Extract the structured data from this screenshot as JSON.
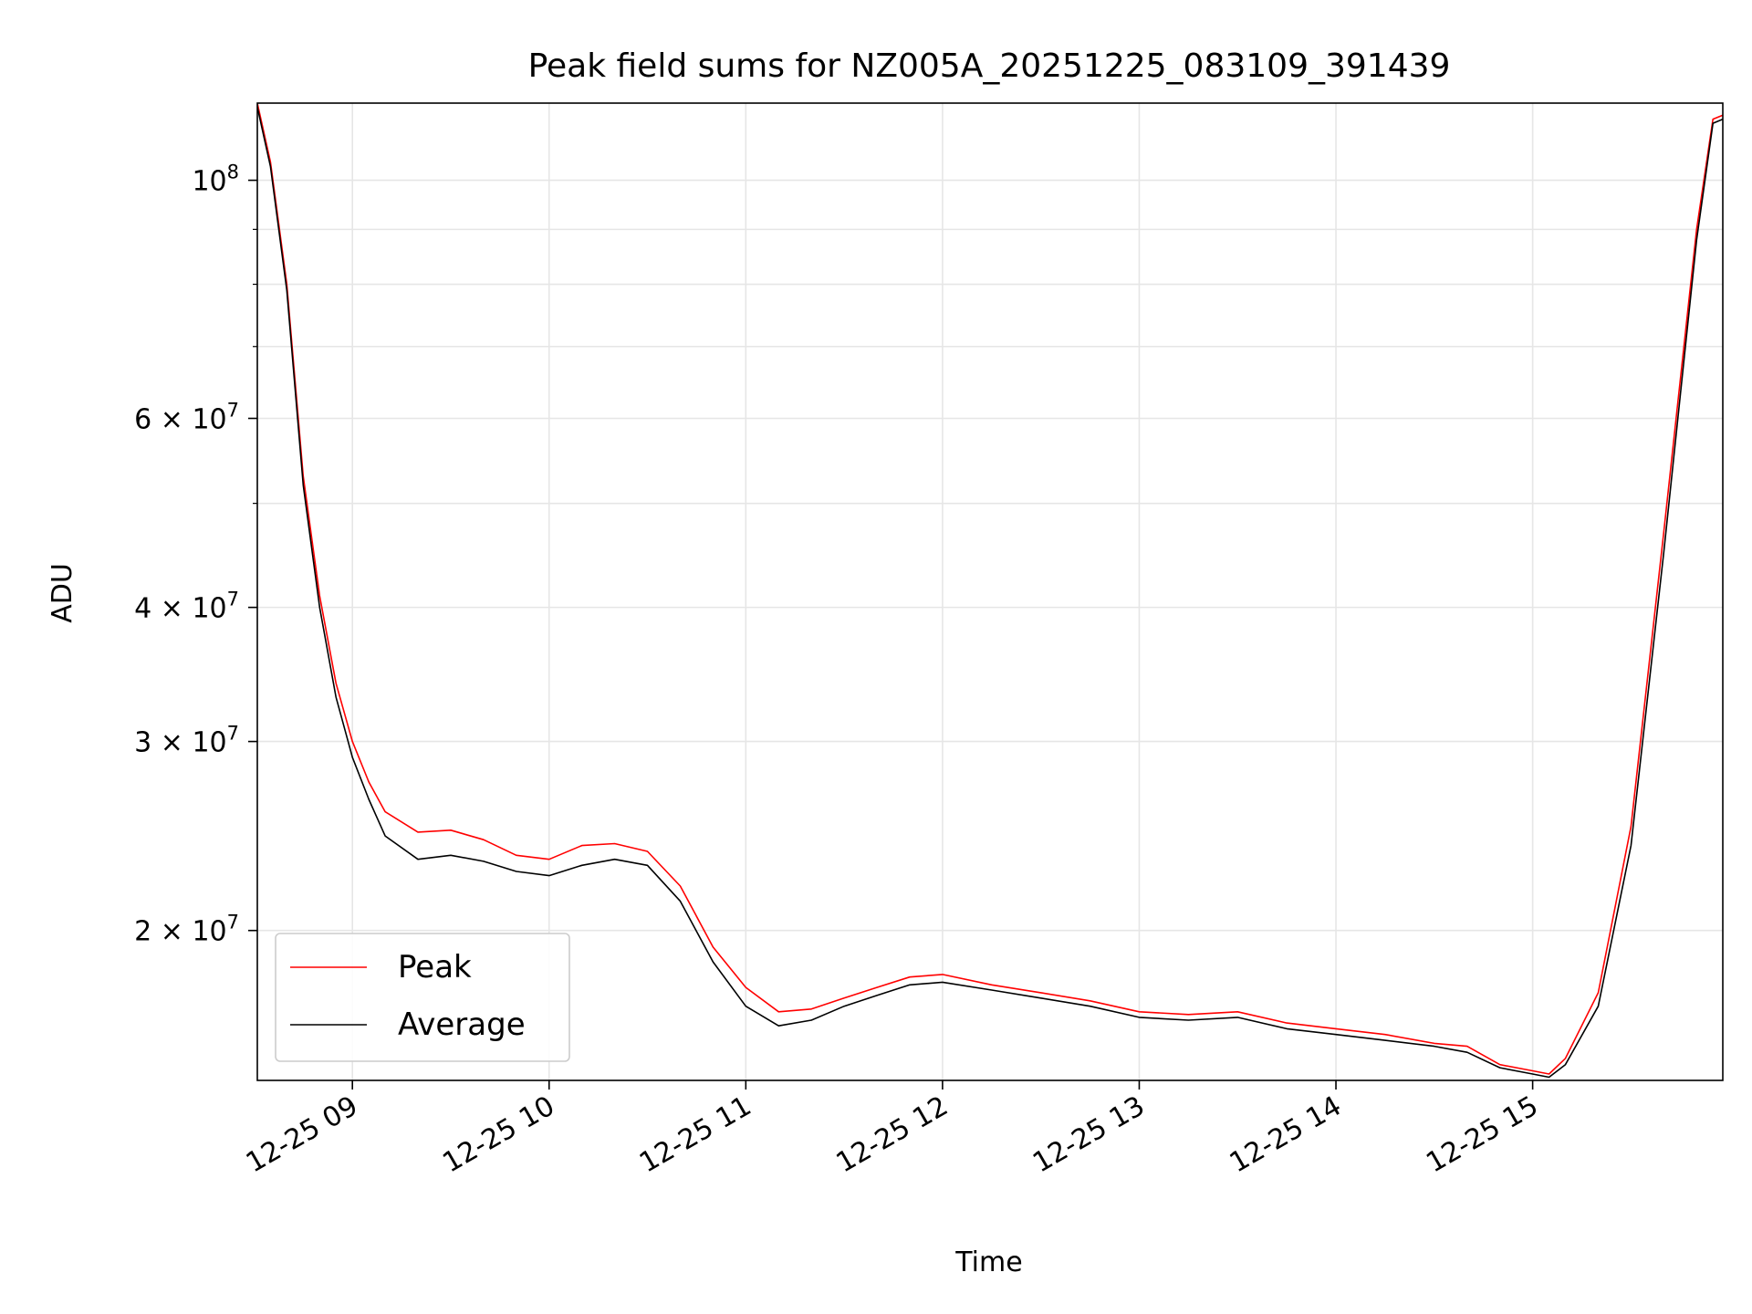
{
  "chart_data": {
    "type": "line",
    "title": "Peak field sums for NZ005A_20251225_083109_391439",
    "xlabel": "Time",
    "ylabel": "ADU",
    "yscale": "log",
    "grid": true,
    "legend_placement": "lower-left",
    "xlim": [
      "2025-12-25 08:31",
      "2025-12-25 15:58"
    ],
    "ylim": [
      14500000,
      118000000
    ],
    "x_ticks": [
      {
        "value": "2025-12-25 09:00",
        "label": "12-25 09"
      },
      {
        "value": "2025-12-25 10:00",
        "label": "12-25 10"
      },
      {
        "value": "2025-12-25 11:00",
        "label": "12-25 11"
      },
      {
        "value": "2025-12-25 12:00",
        "label": "12-25 12"
      },
      {
        "value": "2025-12-25 13:00",
        "label": "12-25 13"
      },
      {
        "value": "2025-12-25 14:00",
        "label": "12-25 14"
      },
      {
        "value": "2025-12-25 15:00",
        "label": "12-25 15"
      }
    ],
    "y_ticks": [
      {
        "value": 20000000,
        "base": "2",
        "exp": "7"
      },
      {
        "value": 30000000,
        "base": "3",
        "exp": "7"
      },
      {
        "value": 40000000,
        "base": "4",
        "exp": "7"
      },
      {
        "value": 60000000,
        "base": "6",
        "exp": "7"
      },
      {
        "value": 100000000,
        "base": "10",
        "exp": "8"
      }
    ],
    "y_minor_ticks": [
      50000000,
      70000000,
      80000000,
      90000000
    ],
    "series": [
      {
        "name": "Peak",
        "color": "#ff0000",
        "points": [
          [
            "2025-12-25 08:31",
            118000000
          ],
          [
            "2025-12-25 08:35",
            104000000
          ],
          [
            "2025-12-25 08:40",
            80000000
          ],
          [
            "2025-12-25 08:45",
            53000000
          ],
          [
            "2025-12-25 08:50",
            41000000
          ],
          [
            "2025-12-25 08:55",
            34000000
          ],
          [
            "2025-12-25 09:00",
            30000000
          ],
          [
            "2025-12-25 09:05",
            27500000
          ],
          [
            "2025-12-25 09:10",
            25800000
          ],
          [
            "2025-12-25 09:20",
            24700000
          ],
          [
            "2025-12-25 09:30",
            24800000
          ],
          [
            "2025-12-25 09:40",
            24300000
          ],
          [
            "2025-12-25 09:50",
            23500000
          ],
          [
            "2025-12-25 10:00",
            23300000
          ],
          [
            "2025-12-25 10:10",
            24000000
          ],
          [
            "2025-12-25 10:20",
            24100000
          ],
          [
            "2025-12-25 10:30",
            23700000
          ],
          [
            "2025-12-25 10:40",
            22000000
          ],
          [
            "2025-12-25 10:50",
            19300000
          ],
          [
            "2025-12-25 11:00",
            17700000
          ],
          [
            "2025-12-25 11:10",
            16800000
          ],
          [
            "2025-12-25 11:20",
            16900000
          ],
          [
            "2025-12-25 11:30",
            17300000
          ],
          [
            "2025-12-25 11:40",
            17700000
          ],
          [
            "2025-12-25 11:50",
            18100000
          ],
          [
            "2025-12-25 12:00",
            18200000
          ],
          [
            "2025-12-25 12:15",
            17800000
          ],
          [
            "2025-12-25 12:30",
            17500000
          ],
          [
            "2025-12-25 12:45",
            17200000
          ],
          [
            "2025-12-25 13:00",
            16800000
          ],
          [
            "2025-12-25 13:15",
            16700000
          ],
          [
            "2025-12-25 13:30",
            16800000
          ],
          [
            "2025-12-25 13:45",
            16400000
          ],
          [
            "2025-12-25 14:00",
            16200000
          ],
          [
            "2025-12-25 14:15",
            16000000
          ],
          [
            "2025-12-25 14:30",
            15700000
          ],
          [
            "2025-12-25 14:40",
            15600000
          ],
          [
            "2025-12-25 14:50",
            15000000
          ],
          [
            "2025-12-25 15:00",
            14800000
          ],
          [
            "2025-12-25 15:05",
            14700000
          ],
          [
            "2025-12-25 15:10",
            15200000
          ],
          [
            "2025-12-25 15:20",
            17500000
          ],
          [
            "2025-12-25 15:30",
            25000000
          ],
          [
            "2025-12-25 15:40",
            47000000
          ],
          [
            "2025-12-25 15:50",
            90000000
          ],
          [
            "2025-12-25 15:55",
            114000000
          ],
          [
            "2025-12-25 15:58",
            115000000
          ]
        ]
      },
      {
        "name": "Average",
        "color": "#000000",
        "points": [
          [
            "2025-12-25 08:31",
            117000000
          ],
          [
            "2025-12-25 08:35",
            103000000
          ],
          [
            "2025-12-25 08:40",
            79000000
          ],
          [
            "2025-12-25 08:45",
            52000000
          ],
          [
            "2025-12-25 08:50",
            40000000
          ],
          [
            "2025-12-25 08:55",
            33000000
          ],
          [
            "2025-12-25 09:00",
            29000000
          ],
          [
            "2025-12-25 09:05",
            26500000
          ],
          [
            "2025-12-25 09:10",
            24500000
          ],
          [
            "2025-12-25 09:20",
            23300000
          ],
          [
            "2025-12-25 09:30",
            23500000
          ],
          [
            "2025-12-25 09:40",
            23200000
          ],
          [
            "2025-12-25 09:50",
            22700000
          ],
          [
            "2025-12-25 10:00",
            22500000
          ],
          [
            "2025-12-25 10:10",
            23000000
          ],
          [
            "2025-12-25 10:20",
            23300000
          ],
          [
            "2025-12-25 10:30",
            23000000
          ],
          [
            "2025-12-25 10:40",
            21300000
          ],
          [
            "2025-12-25 10:50",
            18700000
          ],
          [
            "2025-12-25 11:00",
            17000000
          ],
          [
            "2025-12-25 11:10",
            16300000
          ],
          [
            "2025-12-25 11:20",
            16500000
          ],
          [
            "2025-12-25 11:30",
            17000000
          ],
          [
            "2025-12-25 11:40",
            17400000
          ],
          [
            "2025-12-25 11:50",
            17800000
          ],
          [
            "2025-12-25 12:00",
            17900000
          ],
          [
            "2025-12-25 12:15",
            17600000
          ],
          [
            "2025-12-25 12:30",
            17300000
          ],
          [
            "2025-12-25 12:45",
            17000000
          ],
          [
            "2025-12-25 13:00",
            16600000
          ],
          [
            "2025-12-25 13:15",
            16500000
          ],
          [
            "2025-12-25 13:30",
            16600000
          ],
          [
            "2025-12-25 13:45",
            16200000
          ],
          [
            "2025-12-25 14:00",
            16000000
          ],
          [
            "2025-12-25 14:15",
            15800000
          ],
          [
            "2025-12-25 14:30",
            15600000
          ],
          [
            "2025-12-25 14:40",
            15400000
          ],
          [
            "2025-12-25 14:50",
            14900000
          ],
          [
            "2025-12-25 15:00",
            14700000
          ],
          [
            "2025-12-25 15:05",
            14600000
          ],
          [
            "2025-12-25 15:10",
            15000000
          ],
          [
            "2025-12-25 15:20",
            17000000
          ],
          [
            "2025-12-25 15:30",
            24000000
          ],
          [
            "2025-12-25 15:40",
            45000000
          ],
          [
            "2025-12-25 15:50",
            88000000
          ],
          [
            "2025-12-25 15:55",
            113000000
          ],
          [
            "2025-12-25 15:58",
            114000000
          ]
        ]
      }
    ]
  }
}
